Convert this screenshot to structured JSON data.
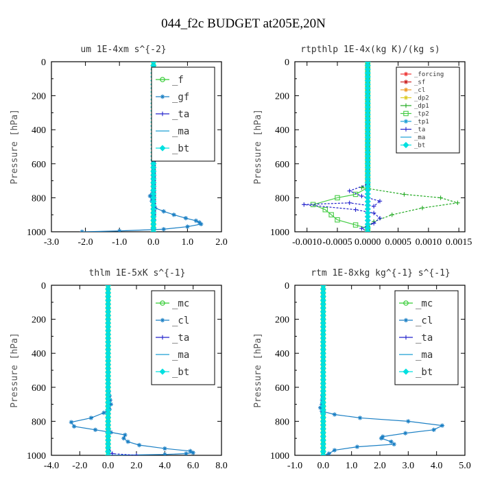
{
  "figure_title": "044_f2c  BUDGET at205E,20N",
  "chart_data": [
    {
      "type": "line",
      "title": "um   1E-4xm s^{-2}",
      "ylabel": "Pressure [hPa]",
      "xlabel": "",
      "xlim": [
        -3.0,
        2.0
      ],
      "ylim": [
        1000,
        0
      ],
      "y_inverted": true,
      "xticks": [
        "-3.0",
        "-2.0",
        "-1.0",
        "0.0",
        "1.0",
        "2.0"
      ],
      "xtick_values": [
        -3,
        -2,
        -1,
        0,
        1,
        2
      ],
      "yticks": [
        "0",
        "200",
        "400",
        "600",
        "800",
        "1000"
      ],
      "ytick_values": [
        0,
        200,
        400,
        600,
        800,
        1000
      ],
      "legend_placement": "top-right",
      "legend_small": false,
      "series": [
        {
          "name": "_f",
          "color": "#33cc33",
          "marker": "circle",
          "x": [
            0.0,
            0.0
          ],
          "y": [
            0,
            1000
          ]
        },
        {
          "name": "_gf",
          "color": "#1a7fc4",
          "marker": "star",
          "x": [
            0.0,
            0.0,
            0.0,
            0.0,
            -0.02,
            -0.05,
            -0.1,
            -0.05,
            0.05,
            0.3,
            0.6,
            0.95,
            1.25,
            1.35,
            1.4,
            1.0,
            0.3,
            -1.0,
            -2.1
          ],
          "y": [
            0,
            300,
            600,
            720,
            760,
            780,
            790,
            820,
            860,
            880,
            900,
            920,
            935,
            945,
            955,
            970,
            985,
            995,
            1000
          ]
        },
        {
          "name": "_ta",
          "color": "#2222cc",
          "marker": "plus",
          "x": [
            0.0,
            0.0,
            0.02,
            0.0,
            0.0
          ],
          "y": [
            0,
            500,
            900,
            980,
            1000
          ]
        },
        {
          "name": "_ma",
          "color": "#1a9fd4",
          "marker": "none",
          "x": [
            0.0,
            0.0
          ],
          "y": [
            0,
            1000
          ]
        },
        {
          "name": "_bt",
          "color": "#00e0e0",
          "marker": "diamond",
          "x": [
            0.0,
            0.0
          ],
          "y": [
            0,
            1000
          ]
        }
      ]
    },
    {
      "type": "line",
      "title": "rtpthlp   1E-4x(kg K)/(kg s)",
      "ylabel": "Pressure [hPa]",
      "xlabel": "",
      "xlim": [
        -0.0012,
        0.0016
      ],
      "ylim": [
        1000,
        0
      ],
      "y_inverted": true,
      "xticks": [
        "-0.0010",
        "-0.0005",
        "0.0000",
        "0.0005",
        "0.0010",
        "0.0015"
      ],
      "xtick_values": [
        -0.001,
        -0.0005,
        0.0,
        0.0005,
        0.001,
        0.0015
      ],
      "yticks": [
        "0",
        "200",
        "400",
        "600",
        "800",
        "1000"
      ],
      "ytick_values": [
        0,
        200,
        400,
        600,
        800,
        1000
      ],
      "legend_placement": "top-right",
      "legend_small": true,
      "series": [
        {
          "name": "_forcing",
          "color": "#ee3333",
          "marker": "star",
          "x": [
            0.0,
            0.0
          ],
          "y": [
            0,
            1000
          ]
        },
        {
          "name": "_sf",
          "color": "#cc2222",
          "marker": "star",
          "x": [
            0.0,
            0.0
          ],
          "y": [
            0,
            1000
          ]
        },
        {
          "name": "_cl",
          "color": "#ee9922",
          "marker": "star",
          "x": [
            0.0,
            0.0
          ],
          "y": [
            0,
            1000
          ]
        },
        {
          "name": "_dp2",
          "color": "#ddcc22",
          "marker": "star",
          "x": [
            0.0,
            0.0
          ],
          "y": [
            0,
            1000
          ]
        },
        {
          "name": "_dp1",
          "color": "#22aa22",
          "marker": "plus",
          "x": [
            0.0,
            0.0,
            0.0,
            -0.0001,
            0.0006,
            0.0012,
            0.00148,
            0.0009,
            0.0004,
            0.0001,
            0.0,
            0.0
          ],
          "y": [
            0,
            600,
            720,
            740,
            780,
            800,
            830,
            860,
            900,
            940,
            970,
            1000
          ]
        },
        {
          "name": "_tp2",
          "color": "#44cc44",
          "marker": "square",
          "x": [
            0.0,
            0.0,
            0.0,
            -0.0002,
            -0.0005,
            -0.0009,
            -0.0007,
            -0.0006,
            -0.0005,
            -0.0002,
            0.0,
            0.0
          ],
          "y": [
            0,
            600,
            740,
            780,
            800,
            840,
            870,
            900,
            930,
            960,
            980,
            1000
          ]
        },
        {
          "name": "_tp1",
          "color": "#1a9fd4",
          "marker": "star",
          "x": [
            0.0,
            0.0
          ],
          "y": [
            0,
            1000
          ]
        },
        {
          "name": "_ta",
          "color": "#2222cc",
          "marker": "plus",
          "x": [
            0.0,
            0.0,
            0.0,
            -0.0003,
            -0.0001,
            0.0002,
            0.0001,
            -0.0003,
            -0.00105,
            -0.0002,
            0.0001,
            0.0002,
            0.0001,
            -0.0001,
            0.0
          ],
          "y": [
            0,
            600,
            720,
            760,
            790,
            820,
            850,
            830,
            840,
            870,
            890,
            920,
            950,
            980,
            1000
          ]
        },
        {
          "name": "_ma",
          "color": "#1a9fd4",
          "marker": "none",
          "x": [
            0.0,
            0.0
          ],
          "y": [
            0,
            1000
          ]
        },
        {
          "name": "_bt",
          "color": "#00e0e0",
          "marker": "diamond",
          "x": [
            0.0,
            0.0
          ],
          "y": [
            0,
            1000
          ]
        }
      ]
    },
    {
      "type": "line",
      "title": "thlm   1E-5xK s^{-1}",
      "ylabel": "Pressure [hPa]",
      "xlabel": "",
      "xlim": [
        -4.0,
        8.0
      ],
      "ylim": [
        1000,
        0
      ],
      "y_inverted": true,
      "xticks": [
        "-4.0",
        "-2.0",
        "0.0",
        "2.0",
        "4.0",
        "6.0",
        "8.0"
      ],
      "xtick_values": [
        -4,
        -2,
        0,
        2,
        4,
        6,
        8
      ],
      "yticks": [
        "0",
        "200",
        "400",
        "600",
        "800",
        "1000"
      ],
      "ytick_values": [
        0,
        200,
        400,
        600,
        800,
        1000
      ],
      "legend_placement": "top-right",
      "legend_small": false,
      "series": [
        {
          "name": "_mc",
          "color": "#33cc33",
          "marker": "circle",
          "x": [
            0.0,
            0.0
          ],
          "y": [
            0,
            1000
          ]
        },
        {
          "name": "_cl",
          "color": "#1a7fc4",
          "marker": "star",
          "x": [
            0.0,
            0.0,
            0.1,
            0.2,
            0.1,
            -0.3,
            -1.2,
            -2.6,
            -2.4,
            -0.9,
            0.2,
            1.2,
            1.1,
            1.4,
            2.2,
            4.0,
            5.8,
            6.0,
            5.5,
            4.0,
            0.0
          ],
          "y": [
            0,
            600,
            650,
            700,
            730,
            750,
            780,
            805,
            830,
            850,
            865,
            880,
            900,
            920,
            940,
            960,
            975,
            985,
            990,
            995,
            1000
          ]
        },
        {
          "name": "_ta",
          "color": "#2222cc",
          "marker": "plus",
          "x": [
            0.0,
            0.0,
            0.3,
            2.0
          ],
          "y": [
            0,
            950,
            990,
            1000
          ]
        },
        {
          "name": "_ma",
          "color": "#1a9fd4",
          "marker": "none",
          "x": [
            0.0,
            0.0
          ],
          "y": [
            0,
            1000
          ]
        },
        {
          "name": "_bt",
          "color": "#00e0e0",
          "marker": "diamond",
          "x": [
            0.0,
            0.0
          ],
          "y": [
            0,
            1000
          ]
        }
      ]
    },
    {
      "type": "line",
      "title": "rtm   1E-8xkg kg^{-1} s^{-1}",
      "ylabel": "Pressure [hPa]",
      "xlabel": "",
      "xlim": [
        -1.0,
        5.0
      ],
      "ylim": [
        1000,
        0
      ],
      "y_inverted": true,
      "xticks": [
        "-1.0",
        "0.0",
        "1.0",
        "2.0",
        "3.0",
        "4.0",
        "5.0"
      ],
      "xtick_values": [
        -1,
        0,
        1,
        2,
        3,
        4,
        5
      ],
      "yticks": [
        "0",
        "200",
        "400",
        "600",
        "800",
        "1000"
      ],
      "ytick_values": [
        0,
        200,
        400,
        600,
        800,
        1000
      ],
      "legend_placement": "top-right",
      "legend_small": false,
      "series": [
        {
          "name": "_mc",
          "color": "#33cc33",
          "marker": "circle",
          "x": [
            0.0,
            0.0
          ],
          "y": [
            0,
            1000
          ]
        },
        {
          "name": "_cl",
          "color": "#1a7fc4",
          "marker": "star",
          "x": [
            0.0,
            0.0,
            -0.05,
            -0.1,
            -0.05,
            0.4,
            1.3,
            3.0,
            4.2,
            3.9,
            2.9,
            2.1,
            2.05,
            2.4,
            2.5,
            1.2,
            0.4,
            0.2,
            0.0
          ],
          "y": [
            0,
            600,
            700,
            720,
            740,
            760,
            780,
            800,
            825,
            850,
            870,
            890,
            900,
            920,
            935,
            950,
            970,
            990,
            1000
          ]
        },
        {
          "name": "_ta",
          "color": "#2222cc",
          "marker": "plus",
          "x": [
            0.0,
            0.0
          ],
          "y": [
            0,
            1000
          ]
        },
        {
          "name": "_ma",
          "color": "#1a9fd4",
          "marker": "none",
          "x": [
            0.0,
            0.0
          ],
          "y": [
            0,
            1000
          ]
        },
        {
          "name": "_bt",
          "color": "#00e0e0",
          "marker": "diamond",
          "x": [
            0.0,
            0.0
          ],
          "y": [
            0,
            1000
          ]
        }
      ]
    }
  ]
}
